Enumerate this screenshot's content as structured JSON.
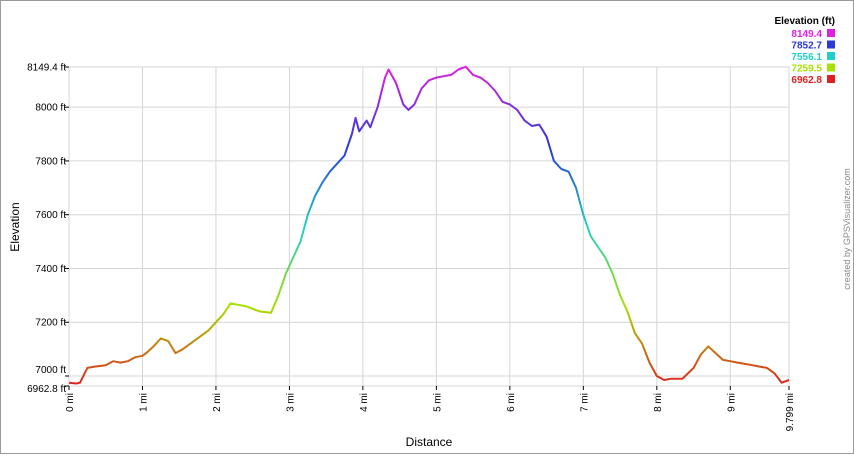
{
  "chart_data": {
    "type": "line",
    "xlabel": "Distance",
    "ylabel": "Elevation",
    "xlim": [
      0,
      9.799
    ],
    "ylim": [
      6962.8,
      8149.4
    ],
    "grid": true,
    "x_ticks": [
      {
        "value": 0,
        "label": "0 mi"
      },
      {
        "value": 1,
        "label": "1 mi"
      },
      {
        "value": 2,
        "label": "2 mi"
      },
      {
        "value": 3,
        "label": "3 mi"
      },
      {
        "value": 4,
        "label": "4 mi"
      },
      {
        "value": 5,
        "label": "5 mi"
      },
      {
        "value": 6,
        "label": "6 mi"
      },
      {
        "value": 7,
        "label": "7 mi"
      },
      {
        "value": 8,
        "label": "8 mi"
      },
      {
        "value": 9,
        "label": "9 mi"
      },
      {
        "value": 9.799,
        "label": "9.799 mi"
      }
    ],
    "y_ticks": [
      {
        "value": 6962.8,
        "label": "6962.8 ft"
      },
      {
        "value": 7000,
        "label": "7000 ft"
      },
      {
        "value": 7200,
        "label": "7200 ft"
      },
      {
        "value": 7400,
        "label": "7400 ft"
      },
      {
        "value": 7600,
        "label": "7600 ft"
      },
      {
        "value": 7800,
        "label": "7800 ft"
      },
      {
        "value": 8000,
        "label": "8000 ft"
      },
      {
        "value": 8149.4,
        "label": "8149.4 ft"
      }
    ],
    "legend": {
      "title": "Elevation (ft)",
      "placement": "top-right",
      "entries": [
        {
          "label": "8149.4",
          "color": "#e020e0"
        },
        {
          "label": "7852.7",
          "color": "#2a3ad8"
        },
        {
          "label": "7556.1",
          "color": "#20d0c8"
        },
        {
          "label": "7259.5",
          "color": "#a8e000"
        },
        {
          "label": "6962.8",
          "color": "#e02020"
        }
      ]
    },
    "color_stops": [
      {
        "value": 6962.8,
        "color": "#e02020"
      },
      {
        "value": 7259.5,
        "color": "#a8e000"
      },
      {
        "value": 7556.1,
        "color": "#20d0c8"
      },
      {
        "value": 7852.7,
        "color": "#2a3ad8"
      },
      {
        "value": 8149.4,
        "color": "#e020e0"
      }
    ],
    "series": [
      {
        "x": [
          0,
          0.1,
          0.15,
          0.25,
          0.35,
          0.5,
          0.6,
          0.7,
          0.8,
          0.9,
          1.0,
          1.05,
          1.15,
          1.25,
          1.35,
          1.45,
          1.55,
          1.7,
          1.8,
          1.9,
          2.0,
          2.1,
          2.2,
          2.3,
          2.4,
          2.5,
          2.6,
          2.75,
          2.85,
          2.95,
          3.05,
          3.15,
          3.25,
          3.35,
          3.45,
          3.55,
          3.65,
          3.75,
          3.85,
          3.9,
          3.95,
          4.05,
          4.1,
          4.2,
          4.3,
          4.35,
          4.45,
          4.55,
          4.62,
          4.7,
          4.8,
          4.9,
          5.0,
          5.1,
          5.2,
          5.3,
          5.4,
          5.5,
          5.6,
          5.7,
          5.8,
          5.9,
          6.0,
          6.1,
          6.2,
          6.3,
          6.4,
          6.5,
          6.6,
          6.7,
          6.8,
          6.9,
          7.0,
          7.1,
          7.2,
          7.3,
          7.4,
          7.5,
          7.6,
          7.7,
          7.8,
          7.9,
          8.0,
          8.1,
          8.2,
          8.35,
          8.5,
          8.6,
          8.7,
          8.78,
          8.9,
          9.0,
          9.1,
          9.2,
          9.3,
          9.4,
          9.5,
          9.6,
          9.7,
          9.799
        ],
        "y": [
          6975,
          6972,
          6975,
          7030,
          7035,
          7040,
          7055,
          7050,
          7055,
          7070,
          7075,
          7085,
          7110,
          7140,
          7130,
          7085,
          7100,
          7130,
          7150,
          7170,
          7200,
          7230,
          7270,
          7265,
          7260,
          7250,
          7240,
          7235,
          7300,
          7380,
          7440,
          7500,
          7600,
          7670,
          7720,
          7760,
          7790,
          7820,
          7900,
          7960,
          7910,
          7950,
          7925,
          8000,
          8110,
          8140,
          8090,
          8010,
          7990,
          8010,
          8070,
          8100,
          8110,
          8115,
          8120,
          8140,
          8150,
          8120,
          8110,
          8090,
          8060,
          8020,
          8010,
          7990,
          7950,
          7930,
          7935,
          7890,
          7800,
          7770,
          7760,
          7700,
          7600,
          7520,
          7480,
          7440,
          7380,
          7300,
          7240,
          7160,
          7120,
          7050,
          7000,
          6985,
          6990,
          6990,
          7030,
          7080,
          7110,
          7090,
          7060,
          7055,
          7050,
          7045,
          7040,
          7035,
          7030,
          7010,
          6975,
          6985
        ]
      }
    ]
  },
  "credit": "created by GPSVisualizer.com"
}
